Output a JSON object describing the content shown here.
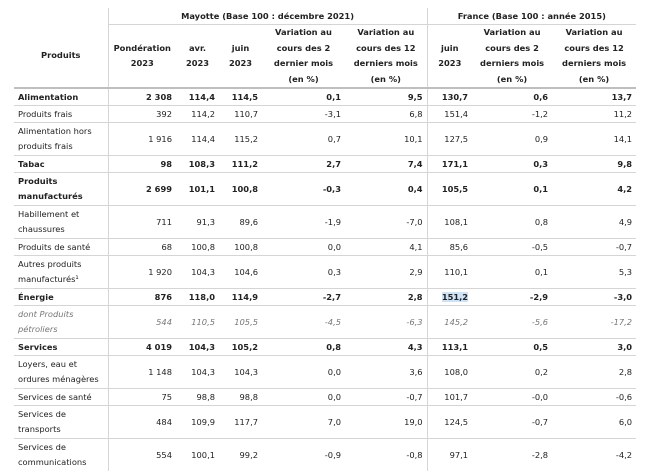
{
  "header": {
    "products": "Produits",
    "mayotte_group": "Mayotte (Base 100 : décembre 2021)",
    "france_group": "France (Base 100 : année 2015)",
    "columns": [
      "Pondération 2023",
      "avr. 2023",
      "juin 2023",
      "Variation au cours des 2 dernier mois (en %)",
      "Variation au cours des 12 derniers mois (en %)",
      "juin 2023",
      "Variation au cours des 2 derniers mois (en %)",
      "Variation au cours des 12 derniers mois (en %)"
    ]
  },
  "rows": [
    {
      "label": "Alimentation",
      "cells": [
        "2 308",
        "114,4",
        "114,5",
        "0,1",
        "9,5",
        "130,7",
        "0,6",
        "13,7"
      ]
    },
    {
      "label": "Produits frais",
      "cells": [
        "392",
        "114,2",
        "110,7",
        "-3,1",
        "6,8",
        "151,4",
        "-1,2",
        "11,2"
      ]
    },
    {
      "label": "Alimentation hors produits frais",
      "cells": [
        "1 916",
        "114,4",
        "115,2",
        "0,7",
        "10,1",
        "127,5",
        "0,9",
        "14,1"
      ]
    },
    {
      "label": "Tabac",
      "cells": [
        "98",
        "108,3",
        "111,2",
        "2,7",
        "7,4",
        "171,1",
        "0,3",
        "9,8"
      ]
    },
    {
      "label": "Produits manufacturés",
      "cells": [
        "2 699",
        "101,1",
        "100,8",
        "-0,3",
        "0,4",
        "105,5",
        "0,1",
        "4,2"
      ]
    },
    {
      "label": "Habillement et chaussures",
      "cells": [
        "711",
        "91,3",
        "89,6",
        "-1,9",
        "-7,0",
        "108,1",
        "0,8",
        "4,9"
      ]
    },
    {
      "label": "Produits de santé",
      "cells": [
        "68",
        "100,8",
        "100,8",
        "0,0",
        "4,1",
        "85,6",
        "-0,5",
        "-0,7"
      ]
    },
    {
      "label": "Autres produits manufacturés¹",
      "cells": [
        "1 920",
        "104,3",
        "104,6",
        "0,3",
        "2,9",
        "110,1",
        "0,1",
        "5,3"
      ]
    },
    {
      "label": "Énergie",
      "cells": [
        "876",
        "118,0",
        "114,9",
        "-2,7",
        "2,8",
        "151,2",
        "-2,9",
        "-3,0"
      ]
    },
    {
      "label": "dont Produits pétroliers",
      "cells": [
        "544",
        "110,5",
        "105,5",
        "-4,5",
        "-6,3",
        "145,2",
        "-5,6",
        "-17,2"
      ]
    },
    {
      "label": "Services",
      "cells": [
        "4 019",
        "104,3",
        "105,2",
        "0,8",
        "4,3",
        "113,1",
        "0,5",
        "3,0"
      ]
    },
    {
      "label": "Loyers, eau et ordures ménagères",
      "cells": [
        "1 148",
        "104,3",
        "104,3",
        "0,0",
        "3,6",
        "108,0",
        "0,2",
        "2,8"
      ]
    },
    {
      "label": "Services de santé",
      "cells": [
        "75",
        "98,8",
        "98,8",
        "0,0",
        "-0,7",
        "101,7",
        "-0,0",
        "-0,6"
      ]
    },
    {
      "label": "Services de transports",
      "cells": [
        "484",
        "109,9",
        "117,7",
        "7,0",
        "19,0",
        "124,5",
        "-0,7",
        "6,0"
      ]
    },
    {
      "label": "Services de communications",
      "cells": [
        "554",
        "100,1",
        "99,2",
        "-0,9",
        "-0,8",
        "97,1",
        "-2,8",
        "-4,2"
      ]
    }
  ]
}
